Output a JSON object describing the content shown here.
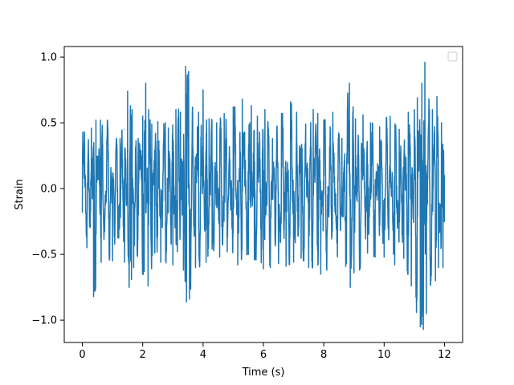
{
  "chart_data": {
    "type": "line",
    "title": "",
    "xlabel": "Time (s)",
    "ylabel": "Strain",
    "xlim": [
      -0.6,
      12.6
    ],
    "ylim": [
      -1.17,
      1.08
    ],
    "xticks": [
      {
        "value": 0,
        "label": "0"
      },
      {
        "value": 2,
        "label": "2"
      },
      {
        "value": 4,
        "label": "4"
      },
      {
        "value": 6,
        "label": "6"
      },
      {
        "value": 8,
        "label": "8"
      },
      {
        "value": 10,
        "label": "10"
      },
      {
        "value": 12,
        "label": "12"
      }
    ],
    "yticks": [
      {
        "value": -1.0,
        "label": "−1.0"
      },
      {
        "value": -0.5,
        "label": "−0.5"
      },
      {
        "value": 0.0,
        "label": "0.0"
      },
      {
        "value": 0.5,
        "label": "0.5"
      },
      {
        "value": 1.0,
        "label": "1.0"
      }
    ],
    "grid": false,
    "legend": {
      "placement": "top-right",
      "entries": []
    },
    "series": [
      {
        "color": "#1f77b4",
        "x_start": 0.0,
        "x_end": 12.0,
        "points_per_second": 180,
        "peaks": [
          {
            "x": 0.0,
            "y": -0.18
          },
          {
            "x": 0.07,
            "y": 0.43
          },
          {
            "x": 0.15,
            "y": -0.45
          },
          {
            "x": 0.3,
            "y": 0.46
          },
          {
            "x": 0.37,
            "y": -0.82
          },
          {
            "x": 0.45,
            "y": 0.52
          },
          {
            "x": 0.6,
            "y": 0.52
          },
          {
            "x": 0.62,
            "y": -0.56
          },
          {
            "x": 1.0,
            "y": -0.55
          },
          {
            "x": 1.25,
            "y": 0.38
          },
          {
            "x": 1.4,
            "y": 0.45
          },
          {
            "x": 1.6,
            "y": -0.55
          },
          {
            "x": 1.4,
            "y": -0.56
          },
          {
            "x": 1.5,
            "y": 0.74
          },
          {
            "x": 1.55,
            "y": -0.57
          },
          {
            "x": 1.65,
            "y": 0.6
          },
          {
            "x": 1.7,
            "y": -0.6
          },
          {
            "x": 1.63,
            "y": -0.69
          },
          {
            "x": 1.55,
            "y": -0.75
          },
          {
            "x": 1.85,
            "y": 0.38
          },
          {
            "x": 2.0,
            "y": 0.55
          },
          {
            "x": 2.05,
            "y": -0.63
          },
          {
            "x": 2.1,
            "y": 0.8
          },
          {
            "x": 2.18,
            "y": -0.74
          },
          {
            "x": 2.2,
            "y": 0.6
          },
          {
            "x": 2.3,
            "y": 0.49
          },
          {
            "x": 2.4,
            "y": -0.49
          },
          {
            "x": 2.5,
            "y": 0.51
          },
          {
            "x": 2.6,
            "y": -0.56
          },
          {
            "x": 2.75,
            "y": 0.5
          },
          {
            "x": 2.85,
            "y": 0.46
          },
          {
            "x": 3.0,
            "y": -0.58
          },
          {
            "x": 3.1,
            "y": 0.6
          },
          {
            "x": 3.15,
            "y": -0.48
          },
          {
            "x": 3.25,
            "y": 0.58
          },
          {
            "x": 3.35,
            "y": -0.62
          },
          {
            "x": 3.42,
            "y": 0.93
          },
          {
            "x": 3.45,
            "y": -0.86
          },
          {
            "x": 3.52,
            "y": 0.89
          },
          {
            "x": 3.55,
            "y": -0.84
          },
          {
            "x": 3.65,
            "y": 0.62
          },
          {
            "x": 3.75,
            "y": -0.6
          },
          {
            "x": 3.85,
            "y": 0.58
          },
          {
            "x": 4.0,
            "y": 0.75
          },
          {
            "x": 4.1,
            "y": -0.56
          },
          {
            "x": 4.2,
            "y": 0.53
          },
          {
            "x": 4.3,
            "y": -0.46
          },
          {
            "x": 4.45,
            "y": 0.5
          },
          {
            "x": 4.55,
            "y": -0.52
          },
          {
            "x": 4.7,
            "y": 0.57
          },
          {
            "x": 4.8,
            "y": -0.48
          },
          {
            "x": 5.0,
            "y": 0.62
          },
          {
            "x": 5.15,
            "y": -0.58
          },
          {
            "x": 5.3,
            "y": 0.68
          },
          {
            "x": 5.38,
            "y": 0.43
          },
          {
            "x": 5.5,
            "y": -0.5
          },
          {
            "x": 5.55,
            "y": 0.5
          },
          {
            "x": 5.6,
            "y": 0.63
          },
          {
            "x": 5.7,
            "y": -0.54
          },
          {
            "x": 5.8,
            "y": 0.55
          },
          {
            "x": 6.0,
            "y": -0.61
          },
          {
            "x": 6.05,
            "y": 0.6
          },
          {
            "x": 6.15,
            "y": 0.49
          },
          {
            "x": 6.3,
            "y": 0.38
          },
          {
            "x": 6.5,
            "y": -0.57
          },
          {
            "x": 6.6,
            "y": 0.57
          },
          {
            "x": 6.75,
            "y": -0.59
          },
          {
            "x": 6.9,
            "y": 0.66
          },
          {
            "x": 7.0,
            "y": -0.56
          },
          {
            "x": 7.1,
            "y": 0.58
          },
          {
            "x": 7.25,
            "y": -0.53
          },
          {
            "x": 7.4,
            "y": 0.49
          },
          {
            "x": 7.5,
            "y": -0.6
          },
          {
            "x": 7.65,
            "y": 0.6
          },
          {
            "x": 7.8,
            "y": 0.57
          },
          {
            "x": 7.9,
            "y": -0.65
          },
          {
            "x": 8.0,
            "y": 0.52
          },
          {
            "x": 8.1,
            "y": -0.62
          },
          {
            "x": 8.3,
            "y": 0.58
          },
          {
            "x": 8.45,
            "y": -0.52
          },
          {
            "x": 8.6,
            "y": 0.38
          },
          {
            "x": 8.75,
            "y": -0.57
          },
          {
            "x": 8.85,
            "y": 0.8
          },
          {
            "x": 8.88,
            "y": -0.75
          },
          {
            "x": 9.0,
            "y": -0.64
          },
          {
            "x": 9.05,
            "y": 0.53
          },
          {
            "x": 9.3,
            "y": 0.56
          },
          {
            "x": 9.45,
            "y": -0.49
          },
          {
            "x": 9.55,
            "y": 0.5
          },
          {
            "x": 9.7,
            "y": -0.52
          },
          {
            "x": 9.85,
            "y": 0.47
          },
          {
            "x": 10.0,
            "y": -0.52
          },
          {
            "x": 10.2,
            "y": 0.55
          },
          {
            "x": 10.35,
            "y": -0.58
          },
          {
            "x": 10.5,
            "y": 0.45
          },
          {
            "x": 10.65,
            "y": -0.53
          },
          {
            "x": 10.8,
            "y": 0.58
          },
          {
            "x": 10.9,
            "y": -0.74
          },
          {
            "x": 11.0,
            "y": 0.6
          },
          {
            "x": 11.1,
            "y": 0.69
          },
          {
            "x": 11.2,
            "y": -1.05
          },
          {
            "x": 11.25,
            "y": 0.8
          },
          {
            "x": 11.3,
            "y": -1.07
          },
          {
            "x": 11.35,
            "y": 0.96
          },
          {
            "x": 11.4,
            "y": -0.95
          },
          {
            "x": 11.5,
            "y": 0.6
          },
          {
            "x": 11.55,
            "y": -0.7
          },
          {
            "x": 11.6,
            "y": 0.6
          },
          {
            "x": 11.7,
            "y": -0.7
          },
          {
            "x": 11.75,
            "y": 0.7
          },
          {
            "x": 11.8,
            "y": -0.6
          },
          {
            "x": 11.9,
            "y": 0.5
          },
          {
            "x": 11.95,
            "y": -0.6
          },
          {
            "x": 12.0,
            "y": 0.1
          }
        ]
      }
    ]
  }
}
